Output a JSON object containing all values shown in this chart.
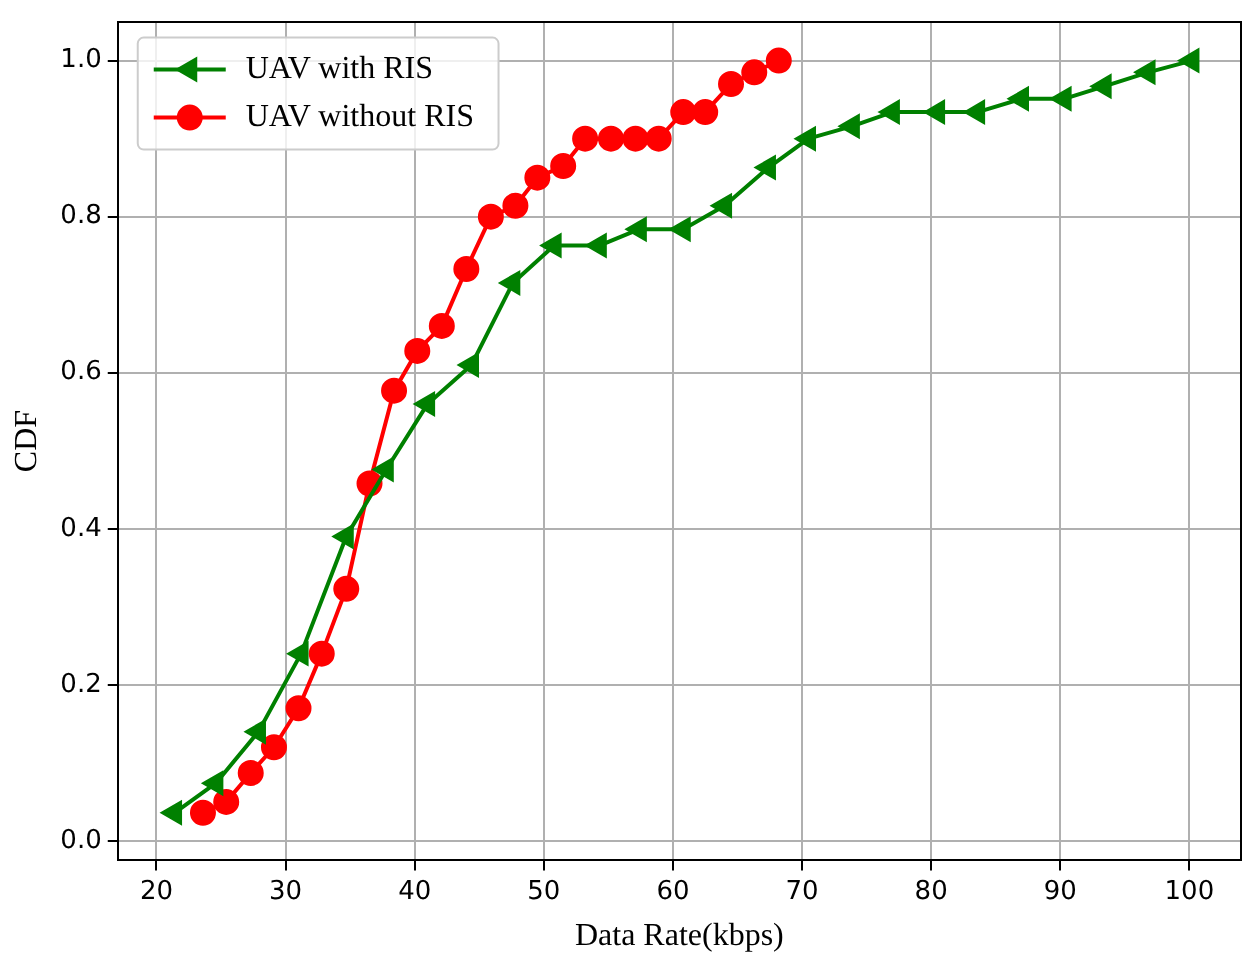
{
  "chart_data": {
    "type": "line",
    "xlabel": "Data Rate(kbps)",
    "ylabel": "CDF",
    "xlim": [
      17,
      104
    ],
    "xticks": [
      20,
      30,
      40,
      50,
      60,
      70,
      80,
      90,
      100
    ],
    "ylim": [
      -0.025,
      1.05
    ],
    "yticks": [
      {
        "value": 0,
        "label": "0.0"
      },
      {
        "value": 0.2,
        "label": "0.2"
      },
      {
        "value": 0.4,
        "label": "0.4"
      },
      {
        "value": 0.6,
        "label": "0.6"
      },
      {
        "value": 0.8,
        "label": "0.8"
      },
      {
        "value": 1,
        "label": "1.0"
      }
    ],
    "grid": true,
    "legend": "top left",
    "line_style": "solid",
    "series": [
      {
        "name": "UAV with RIS",
        "color": "#008000",
        "marker": "triangle",
        "x": [
          21.4,
          24.6,
          27.9,
          31.2,
          34.7,
          37.8,
          41.0,
          44.4,
          47.6,
          50.8,
          54.3,
          57.4,
          60.8,
          64.0,
          67.4,
          70.5,
          73.9,
          77.0,
          80.5,
          83.6,
          87.0,
          90.3,
          93.4,
          96.8,
          100.2
        ],
        "values": [
          0.036,
          0.074,
          0.14,
          0.24,
          0.39,
          0.476,
          0.56,
          0.61,
          0.715,
          0.763,
          0.763,
          0.784,
          0.784,
          0.814,
          0.863,
          0.9,
          0.916,
          0.934,
          0.934,
          0.934,
          0.951,
          0.951,
          0.967,
          0.985,
          1.0
        ]
      },
      {
        "name": "UAV without RIS",
        "color": "#ff0000",
        "marker": "circle",
        "x": [
          23.6,
          25.4,
          27.3,
          29.1,
          31.0,
          32.8,
          34.7,
          36.5,
          38.4,
          40.2,
          42.1,
          44.0,
          45.9,
          47.8,
          49.5,
          51.5,
          53.2,
          55.2,
          57.1,
          58.9,
          60.8,
          62.5,
          64.5,
          66.3,
          68.2
        ],
        "values": [
          0.036,
          0.05,
          0.087,
          0.12,
          0.17,
          0.24,
          0.323,
          0.458,
          0.577,
          0.628,
          0.66,
          0.733,
          0.8,
          0.814,
          0.85,
          0.865,
          0.9,
          0.9,
          0.9,
          0.9,
          0.934,
          0.934,
          0.97,
          0.985,
          1.0
        ]
      }
    ]
  }
}
